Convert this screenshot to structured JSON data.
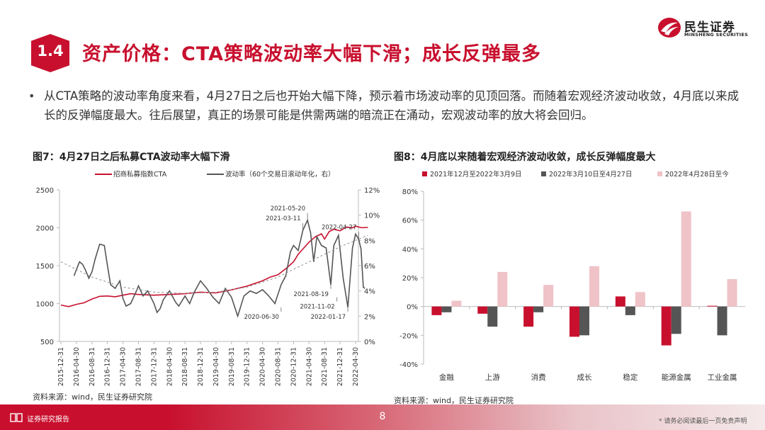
{
  "brand": {
    "name": "民生证券",
    "sub": "MINSHENG SECURITIES",
    "color": "#c8102e"
  },
  "section": {
    "number": "1.4",
    "title": "资产价格：CTA策略波动率大幅下滑；成长反弹最多"
  },
  "bullet": "从CTA策略的波动率角度来看，4月27日之后也开始大幅下降，预示着市场波动率的见顶回落。而随着宏观经济波动收敛，4月底以来成长的反弹幅度最大。往后展望，真正的场景可能是供需两端的暗流正在涌动，宏观波动率的放大将会回归。",
  "fig7": {
    "title": "图7：4月27日之后私募CTA波动率大幅下滑",
    "source": "资料来源：wind，民生证券研究院"
  },
  "fig8": {
    "title": "图8：4月底以来随着宏观经济波动收敛，成长反弹幅度最大",
    "source": "资料来源：wind，民生证券研究院"
  },
  "footer": {
    "label": "证券研究报告",
    "page": "8",
    "disclaimer": "* 请务必阅读最后一页免责声明"
  },
  "chart_data": [
    {
      "type": "line",
      "legend": [
        "招商私募指数CTA",
        "波动率（60个交易日滚动年化，右）"
      ],
      "colors": [
        "#c8102e",
        "#555555",
        "#999999"
      ],
      "y_left": {
        "ticks": [
          500,
          1000,
          1500,
          2000,
          2500
        ],
        "ylim": [
          500,
          2500
        ]
      },
      "y_right": {
        "ticks": [
          "0%",
          "2%",
          "4%",
          "6%",
          "8%",
          "10%",
          "12%"
        ],
        "ylim": [
          0,
          12
        ]
      },
      "x_ticks": [
        "2015-12-31",
        "2016-04-30",
        "2016-08-31",
        "2016-12-31",
        "2017-04-30",
        "2017-08-31",
        "2017-12-31",
        "2018-04-30",
        "2018-08-31",
        "2018-12-31",
        "2019-04-30",
        "2019-08-31",
        "2019-12-31",
        "2020-04-30",
        "2020-08-31",
        "2020-12-31",
        "2021-04-30",
        "2021-08-31",
        "2021-12-31",
        "2022-04-30"
      ],
      "series": [
        {
          "name": "招商私募指数CTA",
          "axis": "left",
          "points": [
            [
              0,
              980
            ],
            [
              0.5,
              960
            ],
            [
              1,
              990
            ],
            [
              1.5,
              1010
            ],
            [
              2,
              1060
            ],
            [
              2.3,
              1080
            ],
            [
              2.5,
              1095
            ],
            [
              3,
              1100
            ],
            [
              3.5,
              1090
            ],
            [
              4,
              1110
            ],
            [
              4.5,
              1130
            ],
            [
              5,
              1120
            ],
            [
              6,
              1110
            ],
            [
              7,
              1120
            ],
            [
              8,
              1130
            ],
            [
              9,
              1150
            ],
            [
              10,
              1140
            ],
            [
              11,
              1180
            ],
            [
              12,
              1230
            ],
            [
              13,
              1300
            ],
            [
              13.5,
              1350
            ],
            [
              14,
              1380
            ],
            [
              14.5,
              1460
            ],
            [
              15,
              1550
            ],
            [
              15.3,
              1650
            ],
            [
              15.6,
              1720
            ],
            [
              16,
              1810
            ],
            [
              16.4,
              1880
            ],
            [
              16.8,
              1920
            ],
            [
              17,
              1850
            ],
            [
              17.3,
              1950
            ],
            [
              17.6,
              1980
            ],
            [
              18,
              1960
            ],
            [
              18.4,
              2010
            ],
            [
              18.8,
              2000
            ],
            [
              19,
              2020
            ],
            [
              19.4,
              2000
            ],
            [
              19.8,
              2005
            ]
          ]
        },
        {
          "name": "波动率（60个交易日滚动年化，右）",
          "axis": "right",
          "points": [
            [
              0.85,
              5.2
            ],
            [
              1,
              5.7
            ],
            [
              1.2,
              6.3
            ],
            [
              1.4,
              6.1
            ],
            [
              1.6,
              5.6
            ],
            [
              1.8,
              5.0
            ],
            [
              2,
              5.5
            ],
            [
              2.2,
              6.5
            ],
            [
              2.5,
              7.7
            ],
            [
              2.8,
              7.6
            ],
            [
              3,
              6.0
            ],
            [
              3.2,
              4.5
            ],
            [
              3.5,
              4.2
            ],
            [
              3.8,
              4.8
            ],
            [
              4,
              3.4
            ],
            [
              4.2,
              2.8
            ],
            [
              4.5,
              3.0
            ],
            [
              4.8,
              3.8
            ],
            [
              5,
              4.4
            ],
            [
              5.3,
              3.6
            ],
            [
              5.6,
              4.0
            ],
            [
              6,
              3.0
            ],
            [
              6.2,
              2.3
            ],
            [
              6.4,
              2.6
            ],
            [
              6.6,
              3.3
            ],
            [
              7,
              4.0
            ],
            [
              7.4,
              3.1
            ],
            [
              7.6,
              2.8
            ],
            [
              8,
              3.6
            ],
            [
              8.3,
              3.0
            ],
            [
              8.6,
              3.9
            ],
            [
              9,
              4.8
            ],
            [
              9.4,
              4.2
            ],
            [
              9.8,
              3.5
            ],
            [
              10.2,
              3.0
            ],
            [
              10.6,
              4.2
            ],
            [
              11,
              3.5
            ],
            [
              11.4,
              2.0
            ],
            [
              11.8,
              3.6
            ],
            [
              12.2,
              4.0
            ],
            [
              12.6,
              3.8
            ],
            [
              13,
              4.1
            ],
            [
              13.4,
              3.6
            ],
            [
              13.8,
              3.0
            ],
            [
              14.2,
              4.5
            ],
            [
              14.5,
              5.2
            ],
            [
              14.8,
              7.1
            ],
            [
              15,
              7.6
            ],
            [
              15.3,
              7.2
            ],
            [
              15.6,
              8.8
            ],
            [
              15.9,
              9.6
            ],
            [
              16.1,
              8.6
            ],
            [
              16.3,
              6.3
            ],
            [
              16.5,
              8.3
            ],
            [
              16.8,
              7.6
            ],
            [
              17.1,
              7.4
            ],
            [
              17.4,
              4.5
            ],
            [
              17.6,
              7.6
            ],
            [
              17.9,
              8.4
            ],
            [
              18.2,
              5.0
            ],
            [
              18.5,
              2.7
            ],
            [
              18.8,
              7.4
            ],
            [
              19,
              8.5
            ],
            [
              19.2,
              8.1
            ],
            [
              19.35,
              7.3
            ],
            [
              19.5,
              4.3
            ],
            [
              19.6,
              4.2
            ]
          ]
        },
        {
          "name": "trend",
          "axis": "right",
          "points": [
            [
              0,
              6.3
            ],
            [
              2,
              5.1
            ],
            [
              4,
              4.3
            ],
            [
              6,
              3.9
            ],
            [
              8,
              3.8
            ],
            [
              10,
              3.9
            ],
            [
              12,
              4.3
            ],
            [
              14,
              5.1
            ],
            [
              16,
              6.3
            ],
            [
              18,
              7.5
            ],
            [
              19.8,
              8.4
            ]
          ]
        }
      ],
      "annotations": [
        {
          "text": "2021-05-20",
          "x": 15.9,
          "y": 9.6
        },
        {
          "text": "2021-03-11",
          "x": 15.6,
          "y": 8.8
        },
        {
          "text": "2022-04-27",
          "x": 19.2,
          "y": 8.1
        },
        {
          "text": "2021-08-19",
          "x": 17.4,
          "y": 4.5
        },
        {
          "text": "2021-11-02",
          "x": 17.8,
          "y": 3.5
        },
        {
          "text": "2020-06-30",
          "x": 14.2,
          "y": 2.7
        },
        {
          "text": "2022-01-17",
          "x": 18.5,
          "y": 2.7
        }
      ]
    },
    {
      "type": "bar",
      "categories": [
        "金融",
        "上游",
        "消费",
        "成长",
        "稳定",
        "能源金属",
        "工业金属"
      ],
      "ylim": [
        -40,
        80
      ],
      "y_ticks": [
        "-40%",
        "-20%",
        "0%",
        "20%",
        "40%",
        "60%",
        "80%"
      ],
      "series": [
        {
          "name": "2021年12月至2022年3月9日",
          "color": "#c8102e",
          "values": [
            -6,
            -5,
            -14,
            -21,
            7,
            -27,
            0.5
          ]
        },
        {
          "name": "2022年3月10日至4月27日",
          "color": "#555555",
          "values": [
            -4,
            -14,
            -4,
            -20,
            -6,
            -19,
            -20
          ]
        },
        {
          "name": "2022年4月28日至今",
          "color": "#efc3c7",
          "values": [
            4,
            24,
            15,
            28,
            10,
            66,
            19
          ]
        }
      ]
    }
  ]
}
